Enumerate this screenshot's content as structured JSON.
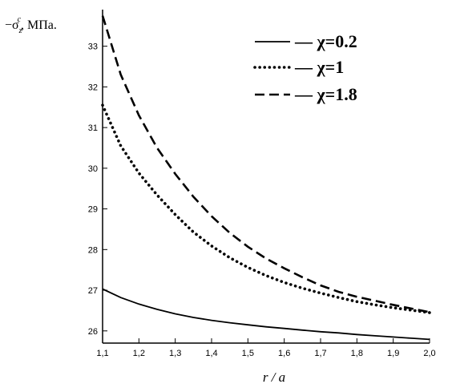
{
  "chart_data": {
    "type": "line",
    "ylabel": "−σ_z^c, МПа.",
    "ylabel_parts": {
      "prefix": "−σ",
      "sub": "z",
      "sup": "c",
      "suffix": ", МПа."
    },
    "xlabel": "r / a",
    "xlim": [
      1.1,
      2.0
    ],
    "ylim": [
      25.7,
      33.9
    ],
    "x_ticks": [
      1.1,
      1.2,
      1.3,
      1.4,
      1.5,
      1.6,
      1.7,
      1.8,
      1.9,
      2.0
    ],
    "x_tick_labels": [
      "1,1",
      "1,2",
      "1,3",
      "1,4",
      "1,5",
      "1,6",
      "1,7",
      "1,8",
      "1,9",
      "2,0"
    ],
    "y_ticks": [
      26,
      27,
      28,
      29,
      30,
      31,
      32,
      33
    ],
    "y_tick_labels": [
      "26",
      "27",
      "28",
      "29",
      "30",
      "31",
      "32",
      "33"
    ],
    "grid": false,
    "legend_position": "top-right",
    "x": [
      1.1,
      1.15,
      1.2,
      1.25,
      1.3,
      1.35,
      1.4,
      1.45,
      1.5,
      1.55,
      1.6,
      1.65,
      1.7,
      1.75,
      1.8,
      1.85,
      1.9,
      1.95,
      2.0
    ],
    "series": [
      {
        "name": "— χ=0.2",
        "style": "solid",
        "values": [
          27.03,
          26.82,
          26.66,
          26.53,
          26.42,
          26.33,
          26.26,
          26.2,
          26.15,
          26.1,
          26.06,
          26.02,
          25.98,
          25.95,
          25.91,
          25.88,
          25.85,
          25.82,
          25.79
        ]
      },
      {
        "name": "••• χ=1",
        "style": "dotted",
        "values": [
          31.55,
          30.55,
          29.88,
          29.34,
          28.86,
          28.43,
          28.09,
          27.8,
          27.56,
          27.36,
          27.19,
          27.05,
          26.93,
          26.82,
          26.72,
          26.64,
          26.57,
          26.51,
          26.45
        ]
      },
      {
        "name": "— — χ=1.8",
        "style": "dashed",
        "values": [
          33.75,
          32.3,
          31.3,
          30.5,
          29.86,
          29.3,
          28.82,
          28.41,
          28.07,
          27.78,
          27.54,
          27.32,
          27.12,
          26.96,
          26.84,
          26.74,
          26.64,
          26.55,
          26.46
        ]
      }
    ]
  }
}
